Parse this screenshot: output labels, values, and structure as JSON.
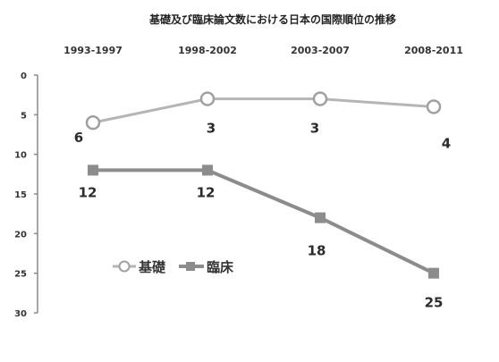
{
  "chart_data": {
    "type": "line",
    "title": "基礎及び臨床論文数における日本の国際順位の推移",
    "categories": [
      "1993-1997",
      "1998-2002",
      "2003-2007",
      "2008-2011"
    ],
    "series": [
      {
        "name": "基礎",
        "values": [
          6,
          3,
          3,
          4
        ],
        "marker": "circle-open",
        "color": "#b5b5b5"
      },
      {
        "name": "臨床",
        "values": [
          12,
          12,
          18,
          25
        ],
        "marker": "square-filled",
        "color": "#8c8c8c"
      }
    ],
    "yticks": [
      "0",
      "5",
      "10",
      "15",
      "20",
      "25",
      "30"
    ],
    "ylim": [
      0,
      30
    ],
    "y_inverted": true,
    "x_axis_position": "top",
    "grid": false,
    "legend_position": "left-bottom"
  }
}
